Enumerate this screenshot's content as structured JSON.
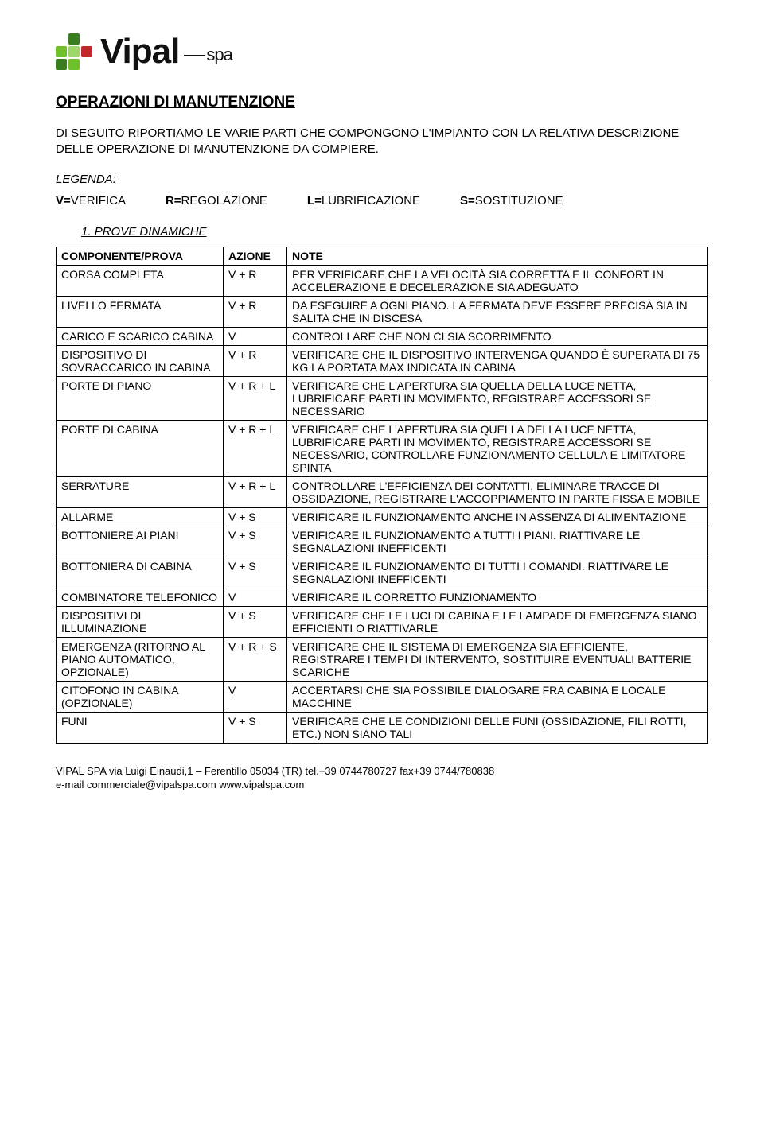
{
  "logo": {
    "name": "Vipal",
    "suffix": "spa"
  },
  "title": "OPERAZIONI DI MANUTENZIONE",
  "intro": "DI SEGUITO RIPORTIAMO LE VARIE PARTI CHE COMPONGONO L'IMPIANTO CON LA RELATIVA DESCRIZIONE DELLE OPERAZIONE DI MANUTENZIONE DA COMPIERE.",
  "legenda_label": "LEGENDA:",
  "legenda": [
    {
      "k": "V=",
      "v": "VERIFICA"
    },
    {
      "k": "R=",
      "v": "REGOLAZIONE"
    },
    {
      "k": "L=",
      "v": "LUBRIFICAZIONE"
    },
    {
      "k": "S=",
      "v": "SOSTITUZIONE"
    }
  ],
  "section_number": "1.",
  "section_title": "PROVE DINAMICHE",
  "columns": [
    "COMPONENTE/PROVA",
    "AZIONE",
    "NOTE"
  ],
  "rows": [
    [
      "CORSA COMPLETA",
      "V + R",
      "PER VERIFICARE CHE LA VELOCITÀ SIA CORRETTA E IL CONFORT IN ACCELERAZIONE E DECELERAZIONE SIA ADEGUATO"
    ],
    [
      "LIVELLO FERMATA",
      "V + R",
      "DA ESEGUIRE A OGNI PIANO. LA FERMATA DEVE ESSERE PRECISA SIA IN SALITA CHE IN DISCESA"
    ],
    [
      "CARICO E SCARICO CABINA",
      "V",
      "CONTROLLARE CHE NON CI SIA SCORRIMENTO"
    ],
    [
      "DISPOSITIVO DI SOVRACCARICO IN CABINA",
      "V + R",
      "VERIFICARE CHE IL DISPOSITIVO INTERVENGA QUANDO È SUPERATA DI 75 KG LA PORTATA MAX INDICATA IN CABINA"
    ],
    [
      "PORTE DI PIANO",
      "V + R + L",
      "VERIFICARE CHE L'APERTURA SIA QUELLA DELLA LUCE NETTA, LUBRIFICARE PARTI IN MOVIMENTO, REGISTRARE ACCESSORI SE NECESSARIO"
    ],
    [
      "PORTE DI CABINA",
      "V + R + L",
      "VERIFICARE CHE L'APERTURA SIA QUELLA DELLA LUCE NETTA, LUBRIFICARE PARTI IN MOVIMENTO, REGISTRARE ACCESSORI SE NECESSARIO, CONTROLLARE FUNZIONAMENTO CELLULA E LIMITATORE SPINTA"
    ],
    [
      "SERRATURE",
      "V + R + L",
      "CONTROLLARE L'EFFICIENZA DEI CONTATTI, ELIMINARE TRACCE DI OSSIDAZIONE, REGISTRARE L'ACCOPPIAMENTO IN PARTE FISSA E MOBILE"
    ],
    [
      "ALLARME",
      "V + S",
      "VERIFICARE IL FUNZIONAMENTO ANCHE IN ASSENZA DI ALIMENTAZIONE"
    ],
    [
      "BOTTONIERE AI PIANI",
      "V + S",
      "VERIFICARE IL FUNZIONAMENTO A TUTTI I PIANI. RIATTIVARE LE SEGNALAZIONI INEFFICENTI"
    ],
    [
      "BOTTONIERA DI CABINA",
      "V + S",
      "VERIFICARE IL FUNZIONAMENTO DI TUTTI I COMANDI. RIATTIVARE LE SEGNALAZIONI INEFFICENTI"
    ],
    [
      "COMBINATORE TELEFONICO",
      "V",
      "VERIFICARE IL CORRETTO FUNZIONAMENTO"
    ],
    [
      "DISPOSITIVI DI ILLUMINAZIONE",
      "V + S",
      "VERIFICARE CHE LE LUCI DI CABINA E LE LAMPADE DI EMERGENZA SIANO EFFICIENTI O RIATTIVARLE"
    ],
    [
      "EMERGENZA (RITORNO AL PIANO AUTOMATICO, OPZIONALE)",
      "V + R + S",
      "VERIFICARE CHE IL SISTEMA DI EMERGENZA SIA EFFICIENTE, REGISTRARE I TEMPI DI INTERVENTO, SOSTITUIRE EVENTUALI BATTERIE SCARICHE"
    ],
    [
      "CITOFONO IN CABINA (OPZIONALE)",
      "V",
      "ACCERTARSI CHE SIA POSSIBILE DIALOGARE FRA CABINA E LOCALE MACCHINE"
    ],
    [
      "FUNI",
      "V + S",
      "VERIFICARE CHE LE CONDIZIONI DELLE FUNI (OSSIDAZIONE, FILI ROTTI, ETC.) NON SIANO TALI"
    ]
  ],
  "footer": {
    "line1": "VIPAL SPA   via Luigi Einaudi,1 – Ferentillo 05034 (TR)  tel.+39 0744780727   fax+39  0744/780838",
    "line2": "e-mail  commerciale@vipalspa.com   www.vipalspa.com"
  }
}
